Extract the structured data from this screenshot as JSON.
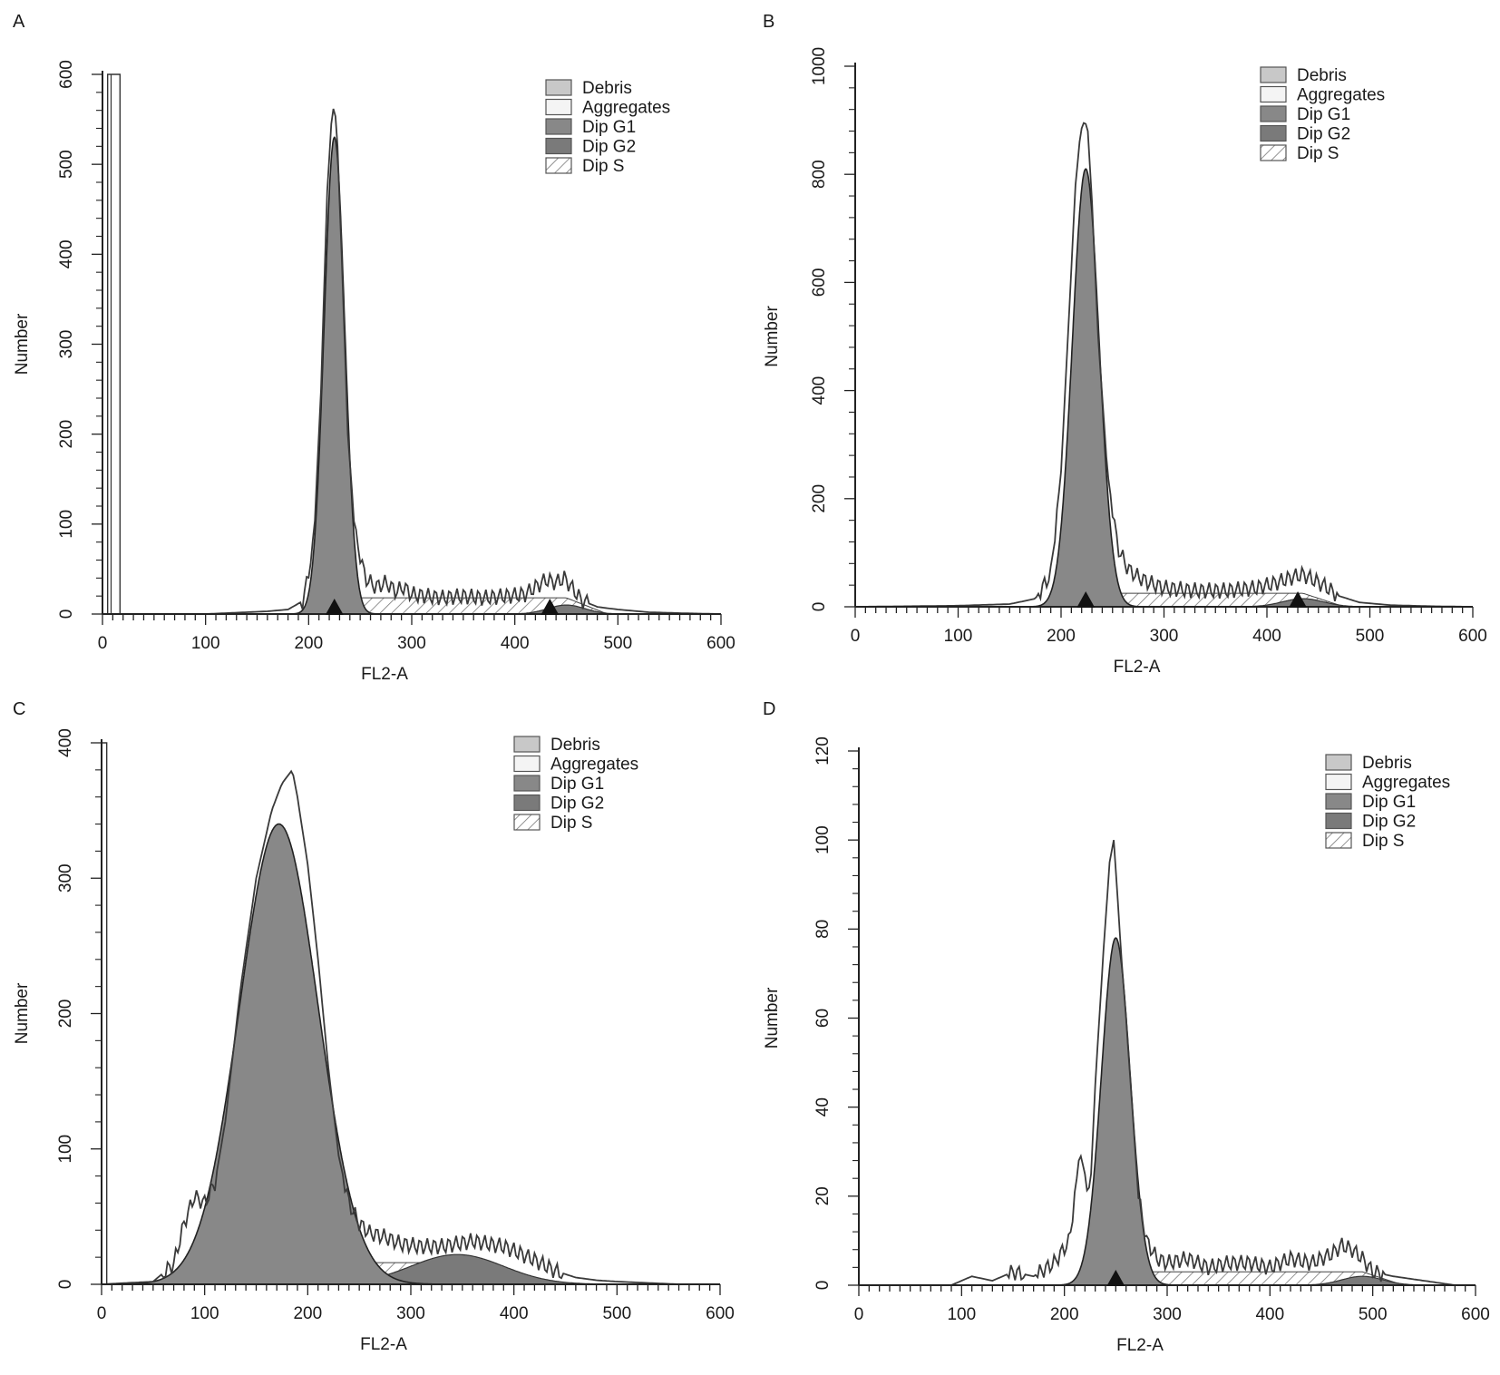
{
  "chart_data": [
    {
      "type": "area",
      "panel_label": "A",
      "xlabel": "FL2-A",
      "ylabel": "Number",
      "xlim": [
        0,
        600
      ],
      "ylim": [
        0,
        600
      ],
      "xticks": [
        0,
        100,
        200,
        300,
        400,
        500,
        600
      ],
      "yticks": [
        0,
        100,
        200,
        300,
        400,
        500,
        600
      ],
      "legend_position": "top-right",
      "legend": [
        "Debris",
        "Aggregates",
        "Dip G1",
        "Dip G2",
        "Dip S"
      ],
      "g1": {
        "mean": 225,
        "sd": 10,
        "amp": 530
      },
      "g2": {
        "mean": 450,
        "sd": 18,
        "amp": 10
      },
      "s_phase": {
        "from": 225,
        "to": 450,
        "level": 18
      },
      "markers": [
        225,
        434
      ],
      "spike": {
        "x_start": 5,
        "x_end": 17
      },
      "raw_histogram": {
        "x": [
          0,
          100,
          140,
          160,
          180,
          195,
          205,
          212,
          218,
          222,
          225,
          228,
          232,
          238,
          245,
          255,
          265,
          275,
          285,
          292,
          300,
          315,
          330,
          350,
          370,
          390,
          410,
          420,
          430,
          440,
          448,
          455,
          465,
          480,
          500,
          530,
          560,
          600
        ],
        "y": [
          0,
          0,
          2,
          3,
          5,
          15,
          80,
          250,
          470,
          545,
          570,
          520,
          400,
          200,
          90,
          40,
          30,
          35,
          25,
          30,
          22,
          20,
          18,
          20,
          18,
          20,
          22,
          30,
          38,
          35,
          40,
          30,
          15,
          8,
          5,
          2,
          1,
          0
        ]
      }
    },
    {
      "type": "area",
      "panel_label": "B",
      "xlabel": "FL2-A",
      "ylabel": "Number",
      "xlim": [
        0,
        600
      ],
      "ylim": [
        0,
        1000
      ],
      "xticks": [
        0,
        100,
        200,
        300,
        400,
        500,
        600
      ],
      "yticks": [
        0,
        200,
        400,
        600,
        800,
        1000
      ],
      "legend_position": "top-right",
      "legend": [
        "Debris",
        "Aggregates",
        "Dip G1",
        "Dip G2",
        "Dip S"
      ],
      "g1": {
        "mean": 224,
        "sd": 13,
        "amp": 810
      },
      "g2": {
        "mean": 435,
        "sd": 20,
        "amp": 15
      },
      "s_phase": {
        "from": 224,
        "to": 435,
        "level": 25
      },
      "markers": [
        224,
        430
      ],
      "raw_histogram": {
        "x": [
          0,
          100,
          150,
          175,
          190,
          200,
          208,
          214,
          219,
          223,
          226,
          230,
          236,
          245,
          255,
          265,
          275,
          285,
          300,
          330,
          360,
          390,
          410,
          425,
          435,
          445,
          455,
          470,
          490,
          520,
          560,
          600
        ],
        "y": [
          0,
          2,
          5,
          15,
          60,
          250,
          550,
          780,
          880,
          900,
          880,
          750,
          500,
          250,
          110,
          70,
          55,
          45,
          35,
          30,
          30,
          35,
          45,
          55,
          60,
          50,
          40,
          20,
          8,
          3,
          1,
          0
        ]
      }
    },
    {
      "type": "area",
      "panel_label": "C",
      "xlabel": "FL2-A",
      "ylabel": "Number",
      "xlim": [
        0,
        600
      ],
      "ylim": [
        0,
        400
      ],
      "xticks": [
        0,
        100,
        200,
        300,
        400,
        500,
        600
      ],
      "yticks": [
        0,
        100,
        200,
        300,
        400
      ],
      "legend_position": "top-right",
      "legend": [
        "Debris",
        "Aggregates",
        "Dip G1",
        "Dip G2",
        "Dip S"
      ],
      "g1": {
        "mean": 172,
        "sd": 38,
        "amp": 340
      },
      "g2": {
        "mean": 345,
        "sd": 45,
        "amp": 22
      },
      "s_phase": {
        "from": 172,
        "to": 345,
        "level": 16
      },
      "markers": [],
      "spike": {
        "x_start": 0,
        "x_end": 5
      },
      "raw_histogram": {
        "x": [
          0,
          50,
          70,
          80,
          90,
          100,
          110,
          120,
          135,
          150,
          165,
          175,
          180,
          185,
          190,
          200,
          210,
          220,
          230,
          240,
          250,
          260,
          275,
          290,
          310,
          330,
          345,
          360,
          375,
          390,
          400,
          420,
          440,
          460,
          480,
          500,
          530,
          560,
          600
        ],
        "y": [
          0,
          2,
          15,
          45,
          65,
          60,
          75,
          120,
          220,
          300,
          350,
          370,
          375,
          380,
          360,
          310,
          240,
          160,
          95,
          60,
          45,
          38,
          35,
          30,
          28,
          28,
          30,
          32,
          30,
          28,
          25,
          18,
          10,
          5,
          3,
          2,
          1,
          0,
          0
        ]
      }
    },
    {
      "type": "area",
      "panel_label": "D",
      "xlabel": "FL2-A",
      "ylabel": "Number",
      "xlim": [
        0,
        600
      ],
      "ylim": [
        0,
        120
      ],
      "xticks": [
        0,
        100,
        200,
        300,
        400,
        500,
        600
      ],
      "yticks": [
        0,
        20,
        40,
        60,
        80,
        100,
        120
      ],
      "legend_position": "top-right",
      "legend": [
        "Debris",
        "Aggregates",
        "Dip G1",
        "Dip G2",
        "Dip S"
      ],
      "g1": {
        "mean": 250,
        "sd": 14,
        "amp": 78
      },
      "g2": {
        "mean": 490,
        "sd": 20,
        "amp": 2
      },
      "s_phase": {
        "from": 250,
        "to": 490,
        "level": 3
      },
      "markers": [
        250
      ],
      "raw_histogram": {
        "x": [
          0,
          90,
          110,
          130,
          150,
          170,
          190,
          205,
          215,
          220,
          225,
          230,
          238,
          244,
          248,
          251,
          255,
          260,
          266,
          272,
          280,
          290,
          300,
          320,
          340,
          360,
          380,
          400,
          420,
          440,
          460,
          470,
          480,
          490,
          500,
          520,
          550,
          580,
          600
        ],
        "y": [
          0,
          0,
          2,
          1,
          3,
          2,
          5,
          10,
          30,
          25,
          20,
          45,
          75,
          95,
          100,
          90,
          75,
          60,
          40,
          20,
          10,
          6,
          5,
          6,
          4,
          5,
          5,
          4,
          6,
          5,
          7,
          9,
          8,
          6,
          3,
          2,
          1,
          0,
          0
        ]
      }
    }
  ]
}
